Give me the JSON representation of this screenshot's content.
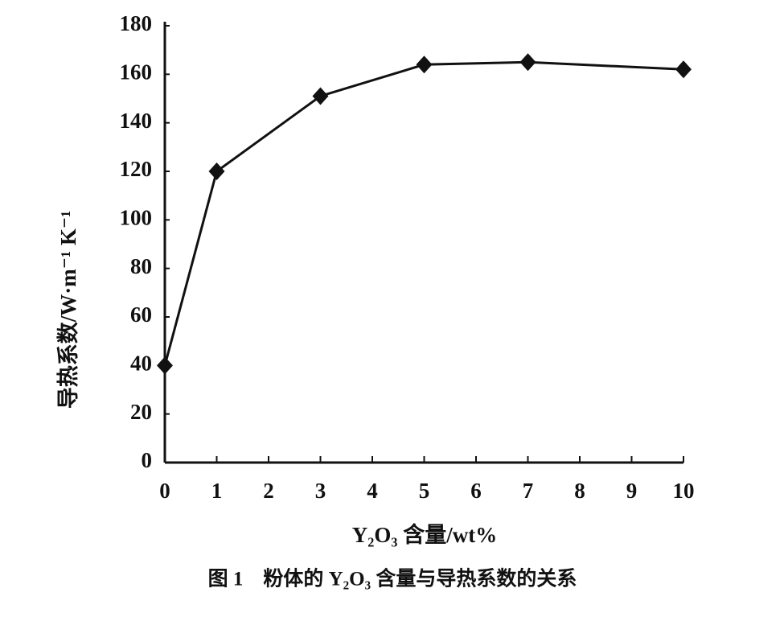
{
  "chart_data": {
    "type": "line",
    "x_label": "Y₂O₃ 含量/wt%",
    "y_label": "导热系数/W·m⁻¹ K⁻¹",
    "caption": "图 1　粉体的 Y₂O₃ 含量与导热系数的关系",
    "x": [
      0,
      1,
      3,
      5,
      7,
      10
    ],
    "series": [
      {
        "color": "#111111",
        "values": [
          40,
          120,
          151,
          164,
          165,
          162
        ]
      }
    ],
    "xlim": [
      0,
      10
    ],
    "xticks": [
      0,
      1,
      2,
      3,
      4,
      5,
      6,
      7,
      8,
      9,
      10
    ],
    "ylim": [
      0,
      180
    ],
    "yticks": [
      0,
      20,
      40,
      60,
      80,
      100,
      120,
      140,
      160,
      180
    ],
    "grid": false
  }
}
